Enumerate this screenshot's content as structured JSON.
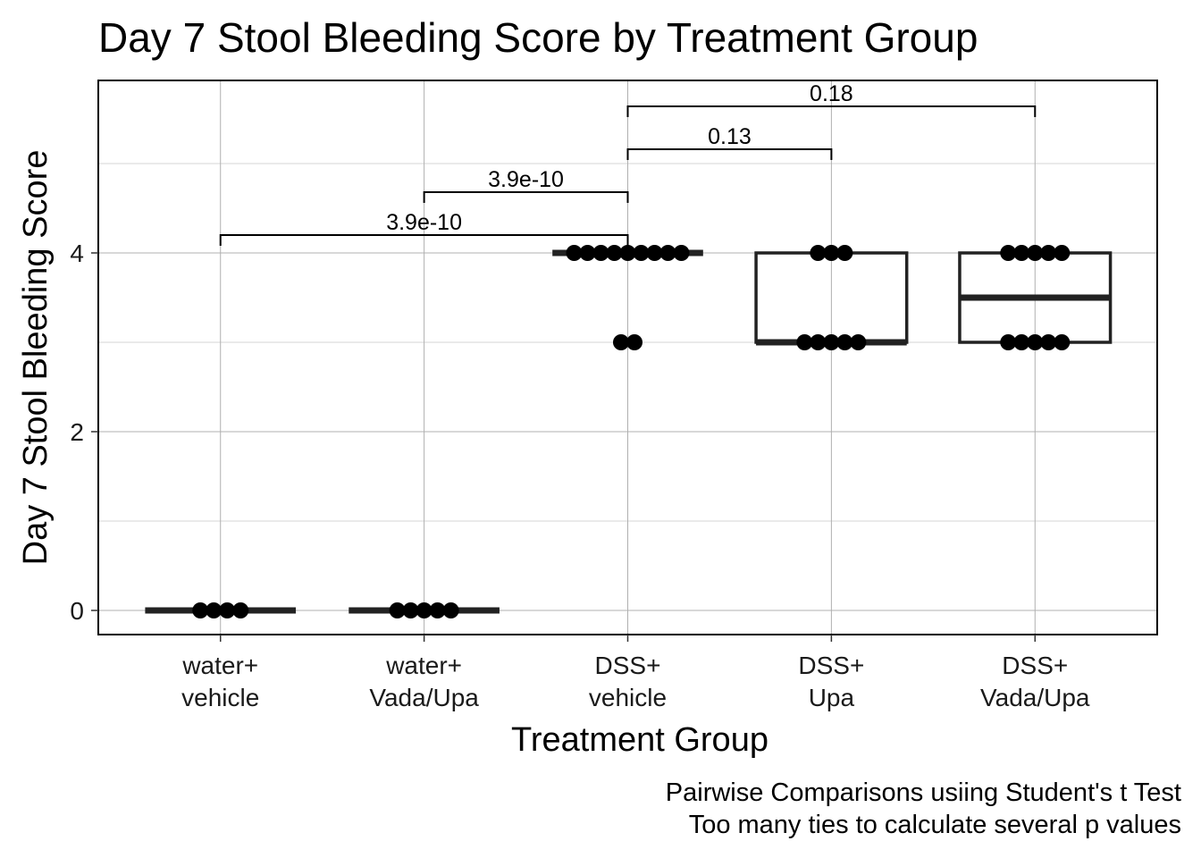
{
  "chart_data": {
    "type": "box",
    "title": "Day 7 Stool Bleeding Score by Treatment Group",
    "xlabel": "Treatment Group",
    "ylabel": "Day 7 Stool Bleeding Score",
    "ylim": [
      -0.27,
      5.93
    ],
    "yticks": [
      0,
      2,
      4
    ],
    "grid": true,
    "categories": [
      {
        "line1": "water+",
        "line2": "vehicle"
      },
      {
        "line1": "water+",
        "line2": "Vada/Upa"
      },
      {
        "line1": "DSS+",
        "line2": "vehicle"
      },
      {
        "line1": "DSS+",
        "line2": "Upa"
      },
      {
        "line1": "DSS+",
        "line2": "Vada/Upa"
      }
    ],
    "boxes": [
      {
        "q1": 0,
        "median": 0,
        "q3": 0
      },
      {
        "q1": 0,
        "median": 0,
        "q3": 0
      },
      {
        "q1": 4,
        "median": 4,
        "q3": 4
      },
      {
        "q1": 3,
        "median": 3,
        "q3": 4
      },
      {
        "q1": 3,
        "median": 3.5,
        "q3": 4
      }
    ],
    "points": [
      [
        0,
        0,
        0,
        0
      ],
      [
        0,
        0,
        0,
        0,
        0
      ],
      [
        4,
        4,
        4,
        4,
        4,
        4,
        4,
        4,
        4,
        3,
        3
      ],
      [
        4,
        4,
        4,
        3,
        3,
        3,
        3,
        3
      ],
      [
        4,
        4,
        4,
        4,
        4,
        3,
        3,
        3,
        3,
        3
      ]
    ],
    "comparisons": [
      {
        "group1": 1,
        "group2": 3,
        "label": "3.9e-10",
        "y": 4.2
      },
      {
        "group1": 2,
        "group2": 3,
        "label": "3.9e-10",
        "y": 4.68
      },
      {
        "group1": 3,
        "group2": 4,
        "label": "0.13",
        "y": 5.16
      },
      {
        "group1": 3,
        "group2": 5,
        "label": "0.18",
        "y": 5.64
      }
    ],
    "caption": [
      "Pairwise Comparisons usiing Student's t Test",
      "Too many ties to calculate several p values"
    ]
  }
}
